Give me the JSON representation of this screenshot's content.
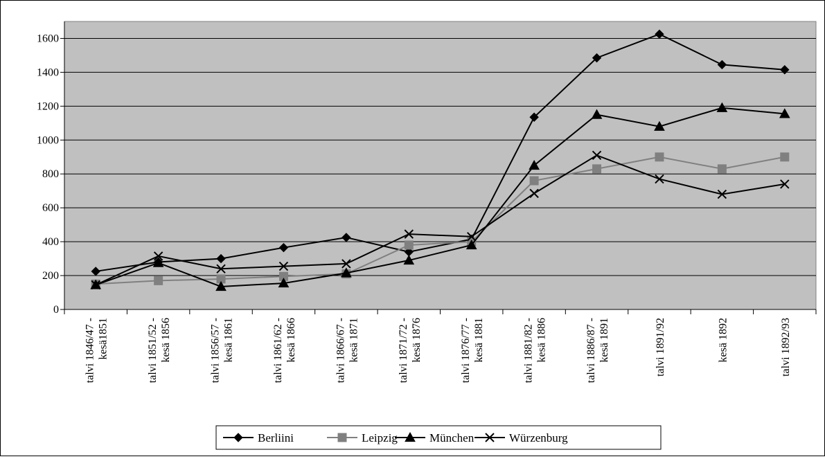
{
  "chart_data": {
    "type": "line",
    "title": "",
    "xlabel": "",
    "ylabel": "",
    "ylim": [
      0,
      1700
    ],
    "yticks": [
      0,
      200,
      400,
      600,
      800,
      1000,
      1200,
      1400,
      1600
    ],
    "grid": true,
    "legend": "bottom",
    "plot_background": "#c0c0c0",
    "categories": [
      [
        "talvi 1846/47 -",
        "kesä1851"
      ],
      [
        "talvi 1851/52 -",
        "kesä 1856"
      ],
      [
        "talvi 1856/57 -",
        "kesä 1861"
      ],
      [
        "talvi 1861/62 -",
        "kesä 1866"
      ],
      [
        "talvi 1866/67 -",
        "kesä 1871"
      ],
      [
        "talvi 1871/72 -",
        "kesä 1876"
      ],
      [
        "talvi 1876/77 -",
        "kesä 1881"
      ],
      [
        "talvi 1881/82 -",
        "kesä 1886"
      ],
      [
        "talvi 1886/87 -",
        "kesä 1891"
      ],
      [
        "talvi 1891/92"
      ],
      [
        "kesä 1892"
      ],
      [
        "talvi 1892/93"
      ]
    ],
    "series": [
      {
        "name": "Berliini",
        "color": "#000000",
        "marker": "diamond",
        "values": [
          225,
          280,
          300,
          365,
          425,
          340,
          415,
          1135,
          1485,
          1625,
          1445,
          1415
        ]
      },
      {
        "name": "Leipzig",
        "color": "#808080",
        "marker": "square",
        "values": [
          150,
          170,
          180,
          195,
          210,
          380,
          400,
          760,
          830,
          900,
          830,
          900
        ]
      },
      {
        "name": "München",
        "color": "#000000",
        "marker": "triangle",
        "values": [
          145,
          275,
          135,
          155,
          215,
          290,
          380,
          850,
          1150,
          1080,
          1190,
          1155
        ]
      },
      {
        "name": "Würzenburg",
        "color": "#000000",
        "marker": "x",
        "values": [
          145,
          315,
          240,
          255,
          270,
          445,
          430,
          685,
          910,
          770,
          680,
          740
        ]
      }
    ]
  }
}
